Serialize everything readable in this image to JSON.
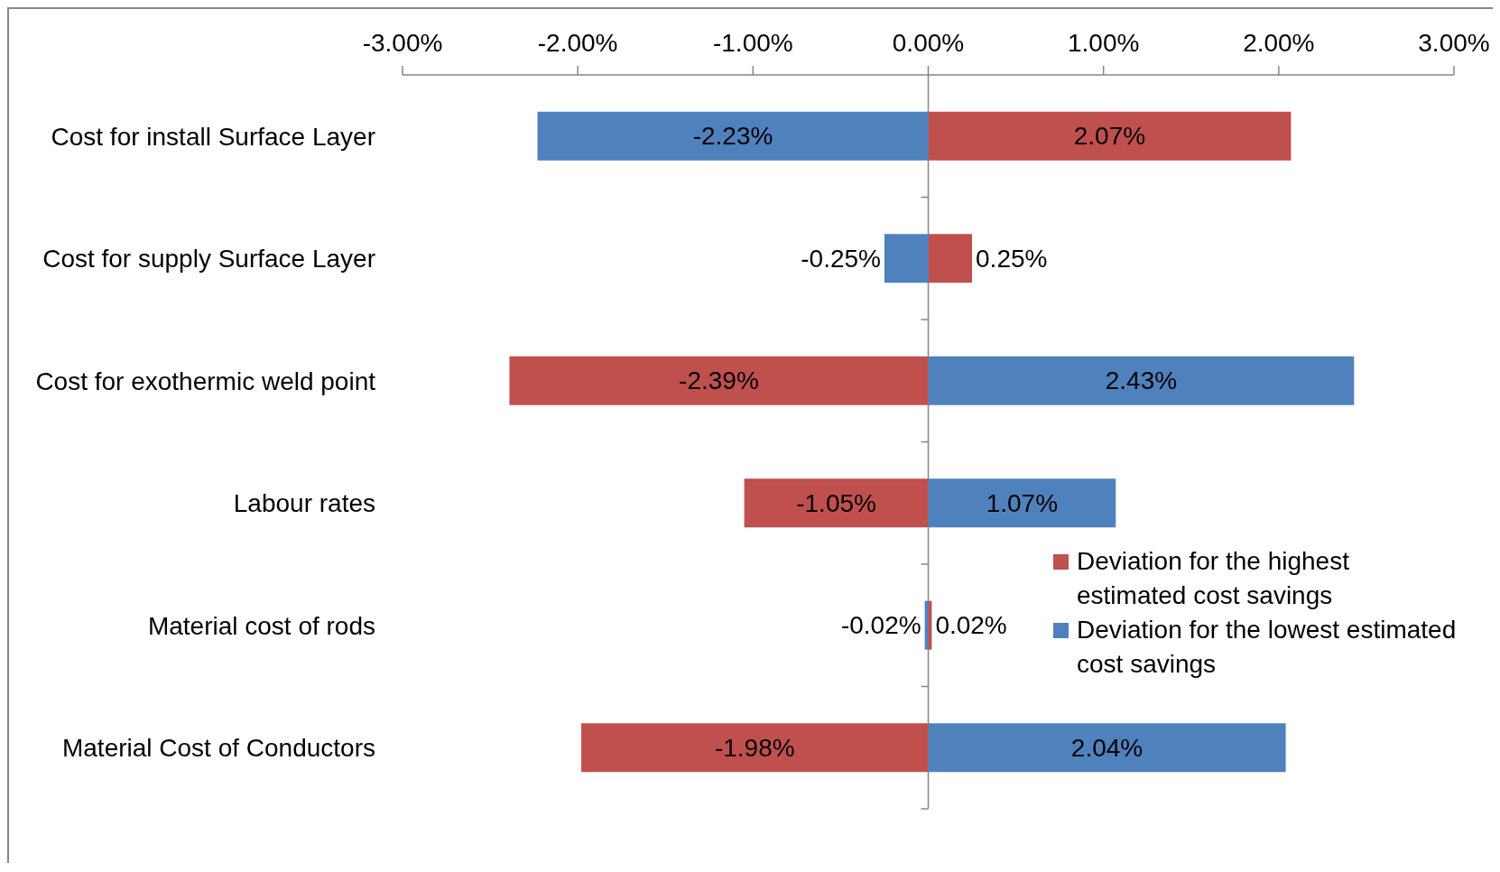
{
  "chart_data": {
    "type": "bar",
    "orientation": "horizontal",
    "stacked": true,
    "categories": [
      "Cost for install Surface Layer",
      "Cost for supply Surface Layer",
      "Cost for exothermic weld point",
      "Labour rates",
      "Material cost of rods",
      "Material Cost of Conductors"
    ],
    "series": [
      {
        "name": "Deviation for the highest estimated cost savings",
        "color": "#c0504d",
        "values": [
          2.07,
          0.25,
          -2.39,
          -1.05,
          0.02,
          -1.98
        ],
        "value_labels": [
          "2.07%",
          "0.25%",
          "-2.39%",
          "-1.05%",
          "0.02%",
          "-1.98%"
        ]
      },
      {
        "name": "Deviation for the lowest estimated cost savings",
        "color": "#4f81bd",
        "values": [
          -2.23,
          -0.25,
          2.43,
          1.07,
          -0.02,
          2.04
        ],
        "value_labels": [
          "-2.23%",
          "-0.25%",
          "2.43%",
          "1.07%",
          "-0.02%",
          "2.04%"
        ]
      }
    ],
    "xlim": [
      -3,
      3
    ],
    "xticks": [
      {
        "value": -3,
        "label": "-3.00%"
      },
      {
        "value": -2,
        "label": "-2.00%"
      },
      {
        "value": -1,
        "label": "-1.00%"
      },
      {
        "value": 0,
        "label": "0.00%"
      },
      {
        "value": 1,
        "label": "1.00%"
      },
      {
        "value": 2,
        "label": "2.00%"
      },
      {
        "value": 3,
        "label": "3.00%"
      }
    ],
    "legend": "bottom right"
  }
}
